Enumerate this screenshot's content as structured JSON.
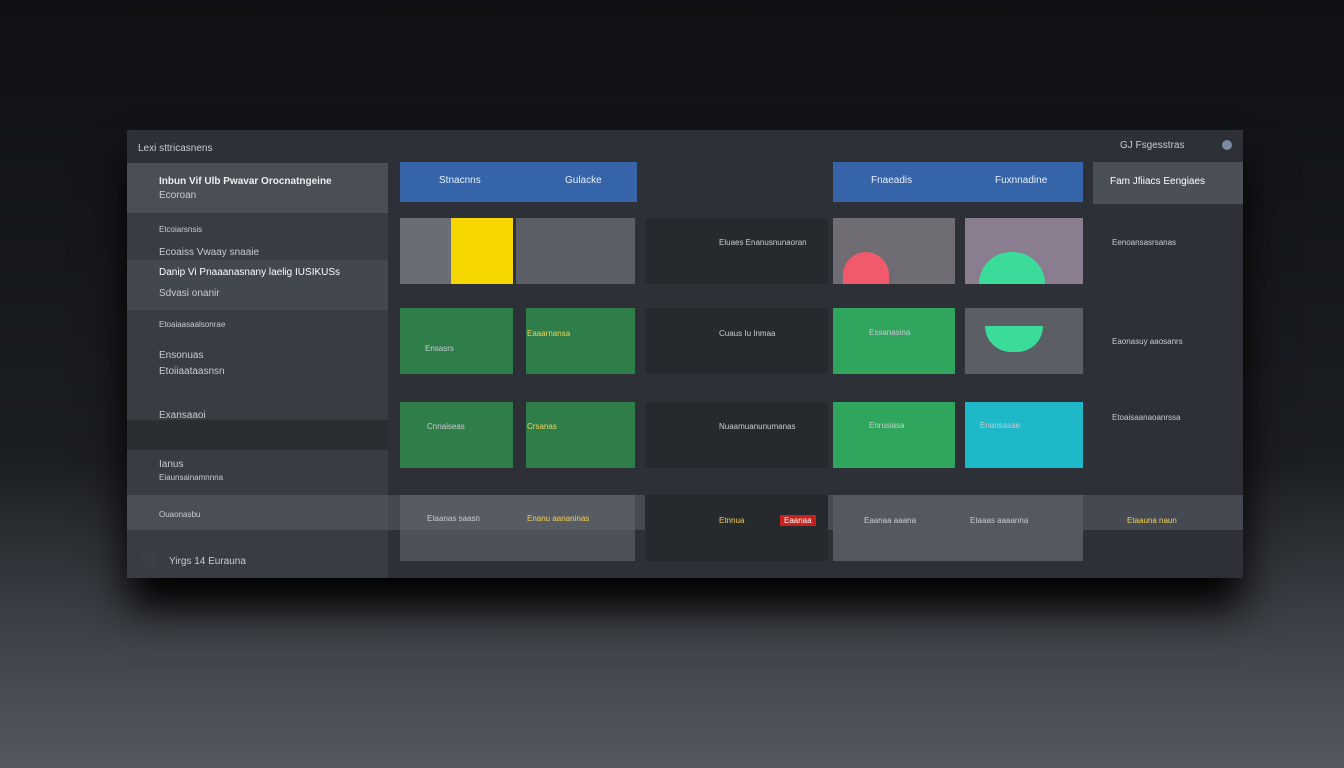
{
  "header": {
    "title": "Lexi sttricasnens",
    "account": "GJ Fsgesstras"
  },
  "sidebar": {
    "items": [
      {
        "title": "Inbun Vif Ulb Pwavar Orocnatngeine",
        "subtitle": "Ecoroan"
      },
      {
        "title": "Etcoiarsnsis"
      },
      {
        "title": "Ecoaiss Vwaay snaaie"
      },
      {
        "title": "Danip Vi Pnaaanasnany laelig IUSIKUSs",
        "subtitle": "Sdvasi onanir"
      },
      {
        "title": "Etoaiaasaalsonrae"
      },
      {
        "title": "Ensonuas",
        "subtitle": "Etoiiaataasnsn"
      },
      {
        "title": "Exansaaoi"
      },
      {
        "title": "Ianus",
        "subtitle": "Eiaunsainamnnna"
      },
      {
        "title": "Ouaonasbu"
      }
    ],
    "footer": "Yirgs 14 Eurauna"
  },
  "tabs": [
    "Stnacnns",
    "Gulacke",
    "Fnaeadis",
    "Fuxnnadine",
    "Fam Jfiiacs Eengiaes"
  ],
  "cards": [
    {
      "text": "Eluaes Enanusnunaoran",
      "side": "Eenoansasrsanas"
    },
    {
      "a": "Ensasrs",
      "b": "Eaaarnansa",
      "text": "Cuaus Iu Inmaa",
      "d": "Essanasina",
      "side": "Eaonasuy aaosanrs"
    },
    {
      "a": "Cnnaiseas",
      "b": "Crsanas",
      "text": "Nuaamuanunumanas",
      "d": "Enrusiasa",
      "e": "Enansasae",
      "side": "Etoaisaanaoanrssa"
    },
    {
      "a": "Etaanas saasn",
      "b": "Enanu aananinas",
      "text": "Etnnua",
      "badge": "Eaanaa",
      "d": "Eaanaa aaana",
      "e": "Etaaas aaaanna",
      "side": "Etaauna naun"
    }
  ]
}
